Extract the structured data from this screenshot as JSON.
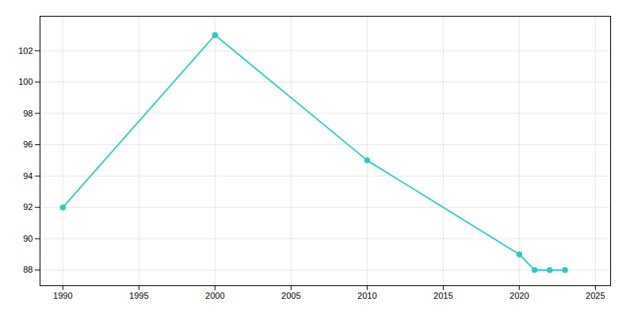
{
  "chart_data": {
    "type": "line",
    "x": [
      1990,
      2000,
      2010,
      2020,
      2021,
      2022,
      2023
    ],
    "values": [
      92,
      103,
      95,
      89,
      88,
      88,
      88
    ],
    "color": "#2ec8c8",
    "marker": "circle",
    "xlim": [
      1988.5,
      2026
    ],
    "ylim": [
      87.0,
      104.2
    ],
    "xticks": [
      1990,
      1995,
      2000,
      2005,
      2010,
      2015,
      2020,
      2025
    ],
    "yticks": [
      88,
      90,
      92,
      94,
      96,
      98,
      100,
      102
    ],
    "grid": true
  }
}
